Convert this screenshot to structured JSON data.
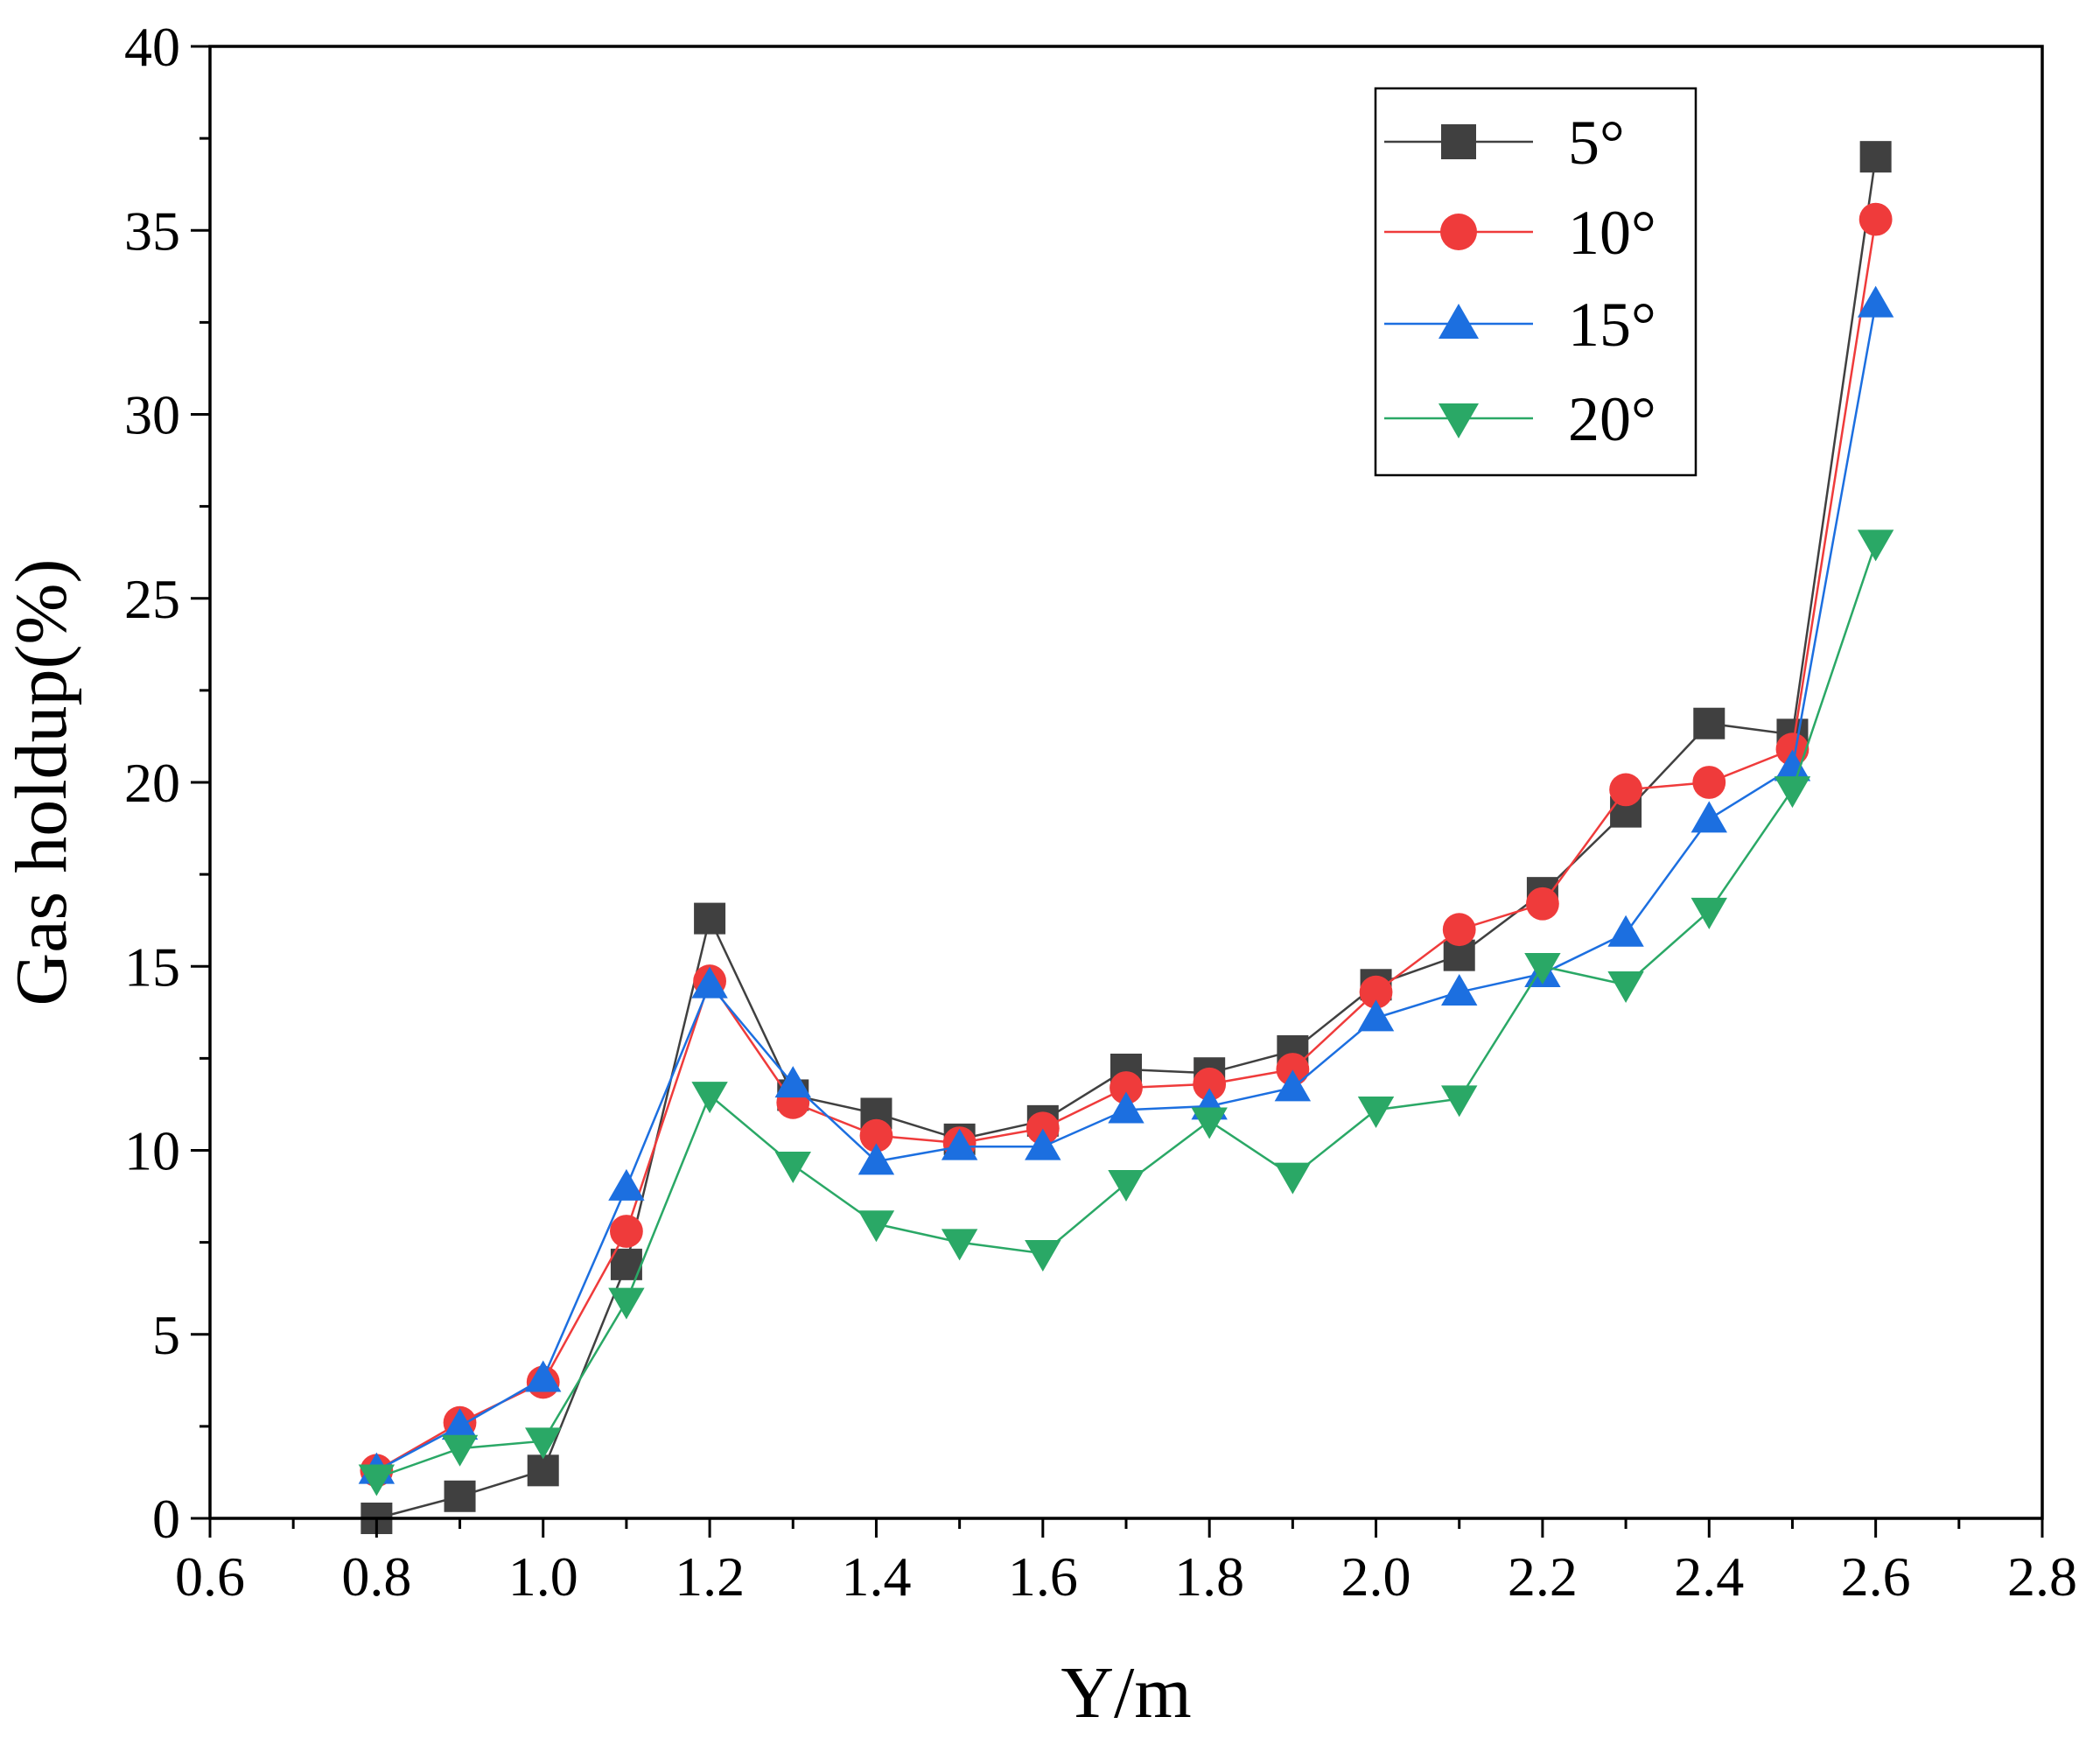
{
  "chart_data": {
    "type": "line",
    "xlabel": "Y/m",
    "ylabel": "Gas holdup(%)",
    "xlim": [
      0.6,
      2.8
    ],
    "ylim": [
      0,
      40
    ],
    "xticks": [
      "0.6",
      "0.8",
      "1.0",
      "1.2",
      "1.4",
      "1.6",
      "1.8",
      "2.0",
      "2.2",
      "2.4",
      "2.6",
      "2.8"
    ],
    "yticks": [
      "0",
      "5",
      "10",
      "15",
      "20",
      "25",
      "30",
      "35",
      "40"
    ],
    "grid": false,
    "legend_position": "top-right",
    "x": [
      0.8,
      0.9,
      1.0,
      1.1,
      1.2,
      1.3,
      1.4,
      1.5,
      1.6,
      1.7,
      1.8,
      1.9,
      2.0,
      2.1,
      2.2,
      2.3,
      2.4,
      2.5,
      2.6
    ],
    "series": [
      {
        "name": "5°",
        "color": "#404040",
        "marker": "square",
        "values": [
          0.0,
          0.6,
          1.3,
          6.9,
          16.3,
          11.5,
          11.0,
          10.3,
          10.8,
          12.2,
          12.1,
          12.7,
          14.5,
          15.3,
          17.0,
          19.2,
          21.6,
          21.3,
          37.0
        ]
      },
      {
        "name": "10°",
        "color": "#ef3b3b",
        "marker": "circle",
        "values": [
          1.3,
          2.6,
          3.7,
          7.8,
          14.6,
          11.3,
          10.4,
          10.2,
          10.6,
          11.7,
          11.8,
          12.2,
          14.3,
          16.0,
          16.7,
          19.8,
          20.0,
          20.9,
          35.3
        ]
      },
      {
        "name": "15°",
        "color": "#1c6fe0",
        "marker": "triangle-up",
        "values": [
          1.3,
          2.5,
          3.8,
          9.0,
          14.5,
          11.8,
          9.7,
          10.1,
          10.1,
          11.1,
          11.2,
          11.7,
          13.6,
          14.3,
          14.8,
          15.9,
          19.0,
          20.4,
          33.0
        ]
      },
      {
        "name": "20°",
        "color": "#2aa866",
        "marker": "triangle-down",
        "values": [
          1.1,
          1.9,
          2.1,
          5.9,
          11.5,
          9.6,
          8.0,
          7.5,
          7.2,
          9.1,
          10.8,
          9.3,
          11.1,
          11.4,
          15.0,
          14.5,
          16.5,
          19.8,
          26.5
        ]
      }
    ]
  }
}
